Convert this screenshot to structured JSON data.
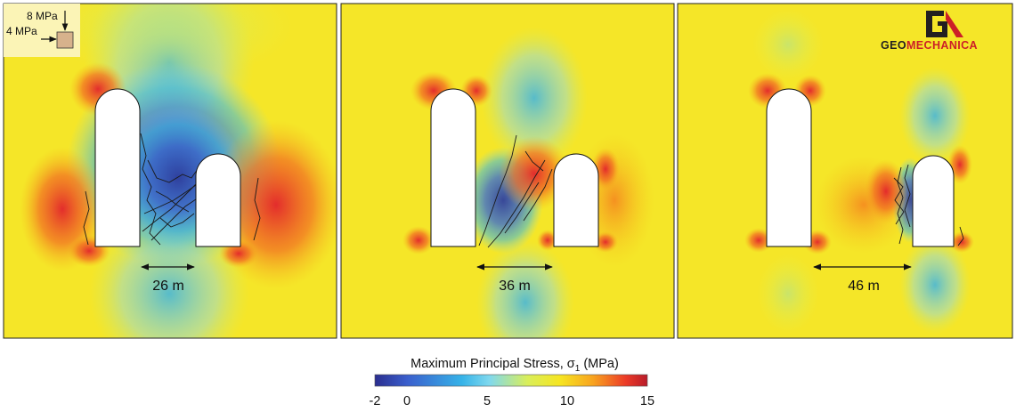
{
  "legend": {
    "load_vertical": "8 MPa",
    "load_horizontal": "4 MPa"
  },
  "logo": {
    "prefix": "GEO",
    "suffix": "MECHANICA",
    "brand_color": "#cc2027",
    "dark_color": "#231f20"
  },
  "panels": [
    {
      "spacing_label": "26 m"
    },
    {
      "spacing_label": "36 m"
    },
    {
      "spacing_label": "46 m"
    }
  ],
  "colorbar": {
    "title_main": "Maximum Principal Stress, σ",
    "title_sub": "1",
    "title_unit": " (MPa)",
    "min": -2,
    "max": 15,
    "ticks": [
      "-2",
      "0",
      "5",
      "10",
      "15"
    ],
    "colors": [
      "#2b2e8f",
      "#3a5fcd",
      "#36b3e8",
      "#7fd8ee",
      "#d9ee5a",
      "#f6e521",
      "#f8a41f",
      "#ec3b27",
      "#b81b2a"
    ]
  }
}
